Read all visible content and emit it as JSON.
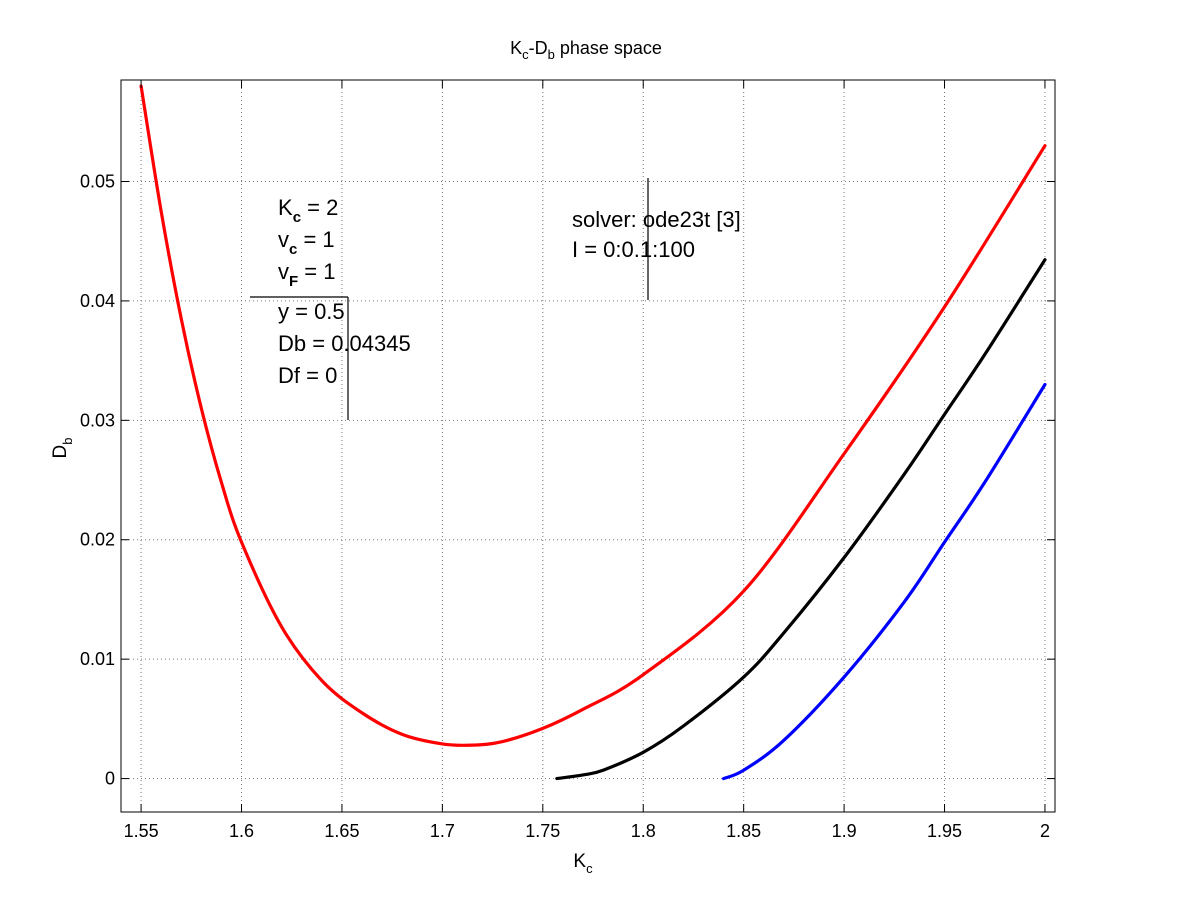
{
  "chart_data": {
    "type": "line",
    "title": {
      "main": "K",
      "sub1": "c",
      "mid": "-D",
      "sub2": "b",
      "rest": " phase space"
    },
    "xlabel": {
      "main": "K",
      "sub": "c"
    },
    "ylabel": {
      "main": "D",
      "sub": "b"
    },
    "xlim": [
      1.54,
      2.005
    ],
    "ylim": [
      -0.0028,
      0.0585
    ],
    "xticks": [
      1.55,
      1.6,
      1.65,
      1.7,
      1.75,
      1.8,
      1.85,
      1.9,
      1.95,
      2
    ],
    "xtick_labels": [
      "1.55",
      "1.6",
      "1.65",
      "1.7",
      "1.75",
      "1.8",
      "1.85",
      "1.9",
      "1.95",
      "2"
    ],
    "yticks": [
      0,
      0.01,
      0.02,
      0.03,
      0.04,
      0.05
    ],
    "ytick_labels": [
      "0",
      "0.01",
      "0.02",
      "0.03",
      "0.04",
      "0.05"
    ],
    "grid": true,
    "series": [
      {
        "color": "#ff0000",
        "x": [
          1.55,
          1.56,
          1.57,
          1.58,
          1.59,
          1.6,
          1.62,
          1.64,
          1.66,
          1.68,
          1.7,
          1.715,
          1.73,
          1.75,
          1.77,
          1.8,
          1.85,
          1.9,
          1.95,
          2.0
        ],
        "y": [
          0.058,
          0.0475,
          0.0385,
          0.031,
          0.0248,
          0.0198,
          0.0127,
          0.0082,
          0.0055,
          0.0037,
          0.0029,
          0.0028,
          0.0031,
          0.0042,
          0.0058,
          0.0087,
          0.0157,
          0.0272,
          0.0395,
          0.053
        ]
      },
      {
        "color": "#000000",
        "x": [
          1.757,
          1.77,
          1.78,
          1.8,
          1.82,
          1.85,
          1.87,
          1.9,
          1.93,
          1.95,
          1.97,
          2.0
        ],
        "y": [
          0.0,
          0.0003,
          0.0007,
          0.0022,
          0.0044,
          0.0085,
          0.0122,
          0.0185,
          0.0255,
          0.0305,
          0.0355,
          0.04345
        ]
      },
      {
        "color": "#0000ff",
        "x": [
          1.84,
          1.85,
          1.87,
          1.9,
          1.93,
          1.95,
          1.97,
          2.0
        ],
        "y": [
          0.0,
          0.0007,
          0.0032,
          0.0085,
          0.0148,
          0.0198,
          0.0248,
          0.033
        ]
      }
    ],
    "annotations": {
      "params": [
        {
          "main": "K",
          "sub": "c",
          "value": " = 2"
        },
        {
          "main": "v",
          "sub": "c",
          "value": " = 1"
        },
        {
          "main": "v",
          "sub": "F",
          "value": " = 1"
        },
        {
          "main": "",
          "sub": "",
          "value": "y = 0.5"
        },
        {
          "main": "",
          "sub": "",
          "value": "Db = 0.04345"
        },
        {
          "main": "",
          "sub": "",
          "value": "Df = 0"
        }
      ],
      "solver": [
        "solver: ode23t [3]",
        "I = 0:0.1:100"
      ]
    }
  }
}
